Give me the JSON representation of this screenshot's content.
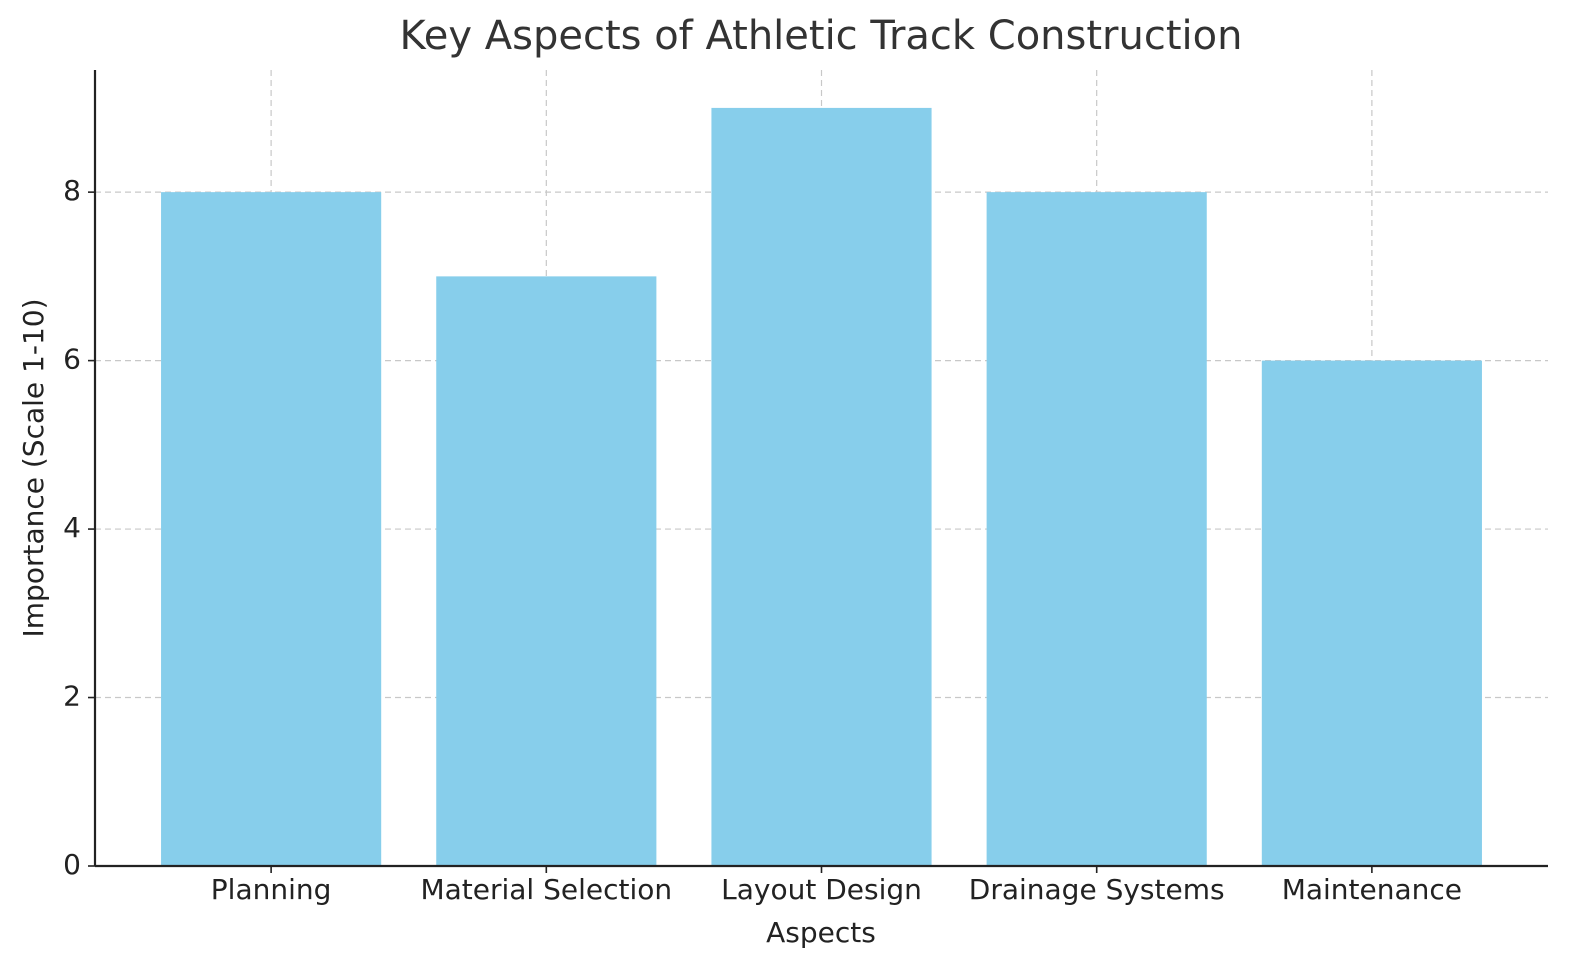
{
  "chart_data": {
    "type": "bar",
    "title": "Key Aspects of Athletic Track Construction",
    "xlabel": "Aspects",
    "ylabel": "Importance (Scale 1-10)",
    "categories": [
      "Planning",
      "Material Selection",
      "Layout Design",
      "Drainage Systems",
      "Maintenance"
    ],
    "values": [
      8,
      7,
      9,
      8,
      6
    ],
    "color": "#87ceeb",
    "ylim": [
      0,
      9.45
    ],
    "yticks": [
      0,
      2,
      4,
      6,
      8
    ],
    "grid": true
  }
}
